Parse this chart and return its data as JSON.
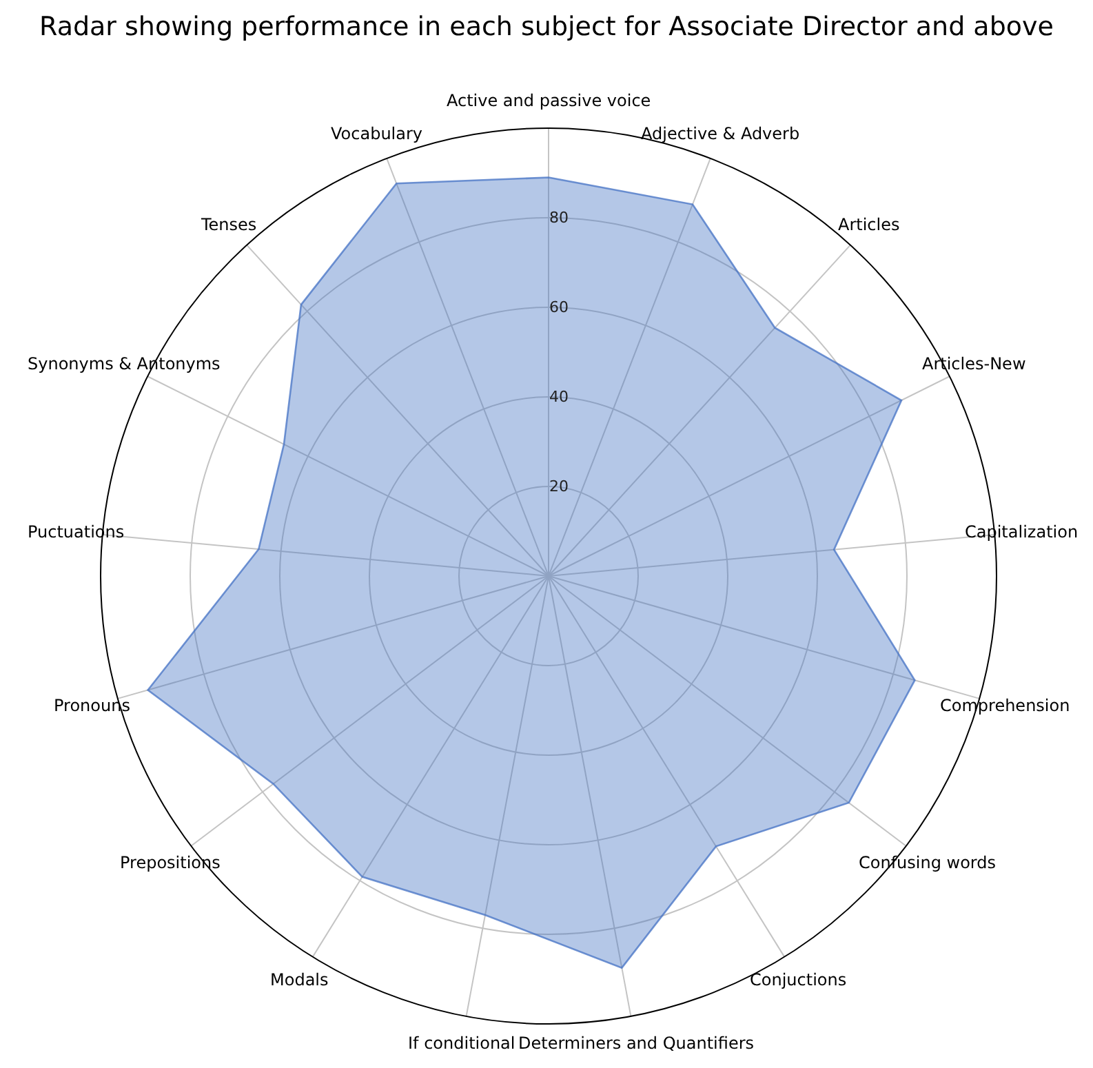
{
  "chart_data": {
    "type": "radar",
    "title": "Radar showing performance in each subject for Associate Director and above",
    "categories": [
      "Active and passive voice",
      "Adjective & Adverb",
      "Articles",
      "Articles-New",
      "Capitalization",
      "Comprehension",
      "Confusing words",
      "Conjuctions",
      "Determiners and Quantifiers",
      "If conditional",
      "Modals",
      "Prepositions",
      "Pronouns",
      "Puctuations",
      "Synonyms & Antonyms",
      "Tenses",
      "Vocabulary"
    ],
    "series": [
      {
        "color": "#4472c4",
        "values": [
          89,
          89,
          75,
          88,
          64,
          85,
          84,
          71,
          89,
          77,
          79,
          77,
          93,
          65,
          66,
          82,
          94
        ]
      }
    ],
    "ylim": [
      0,
      100
    ],
    "yticks": [
      20,
      40,
      60,
      80
    ],
    "grid": true
  }
}
